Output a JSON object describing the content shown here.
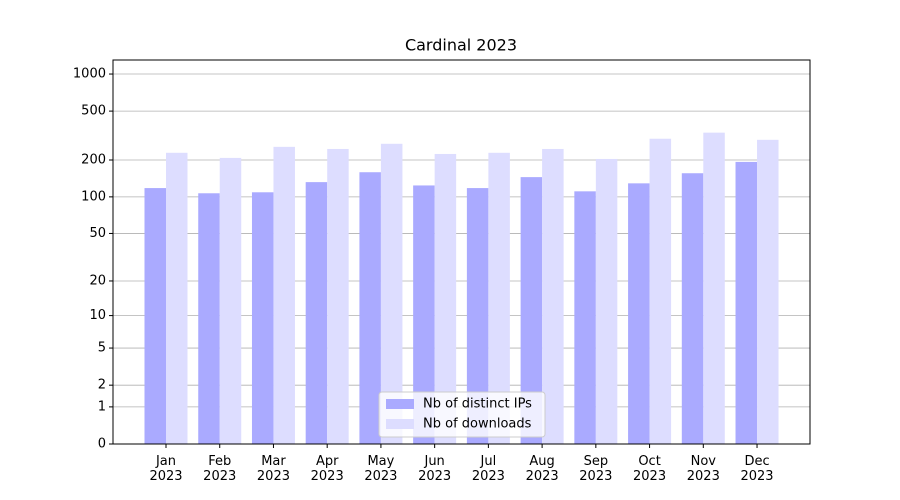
{
  "chart_data": {
    "type": "bar",
    "title": "Cardinal 2023",
    "scale": "log1p",
    "grid": true,
    "legend": "lower center",
    "categories": [
      "Jan 2023",
      "Feb 2023",
      "Mar 2023",
      "Apr 2023",
      "May 2023",
      "Jun 2023",
      "Jul 2023",
      "Aug 2023",
      "Sep 2023",
      "Oct 2023",
      "Nov 2023",
      "Dec 2023"
    ],
    "series": [
      {
        "name": "Nb of distinct IPs",
        "color": "#aaaaff",
        "values": [
          118,
          107,
          109,
          132,
          159,
          124,
          118,
          145,
          111,
          129,
          156,
          193
        ]
      },
      {
        "name": "Nb of downloads",
        "color": "#ddddff",
        "values": [
          229,
          208,
          256,
          246,
          271,
          224,
          229,
          246,
          204,
          298,
          334,
          292
        ]
      }
    ],
    "ylim": [
      0,
      1300
    ],
    "yticks": [
      0,
      1,
      2,
      5,
      10,
      20,
      50,
      100,
      200,
      500,
      1000
    ]
  }
}
